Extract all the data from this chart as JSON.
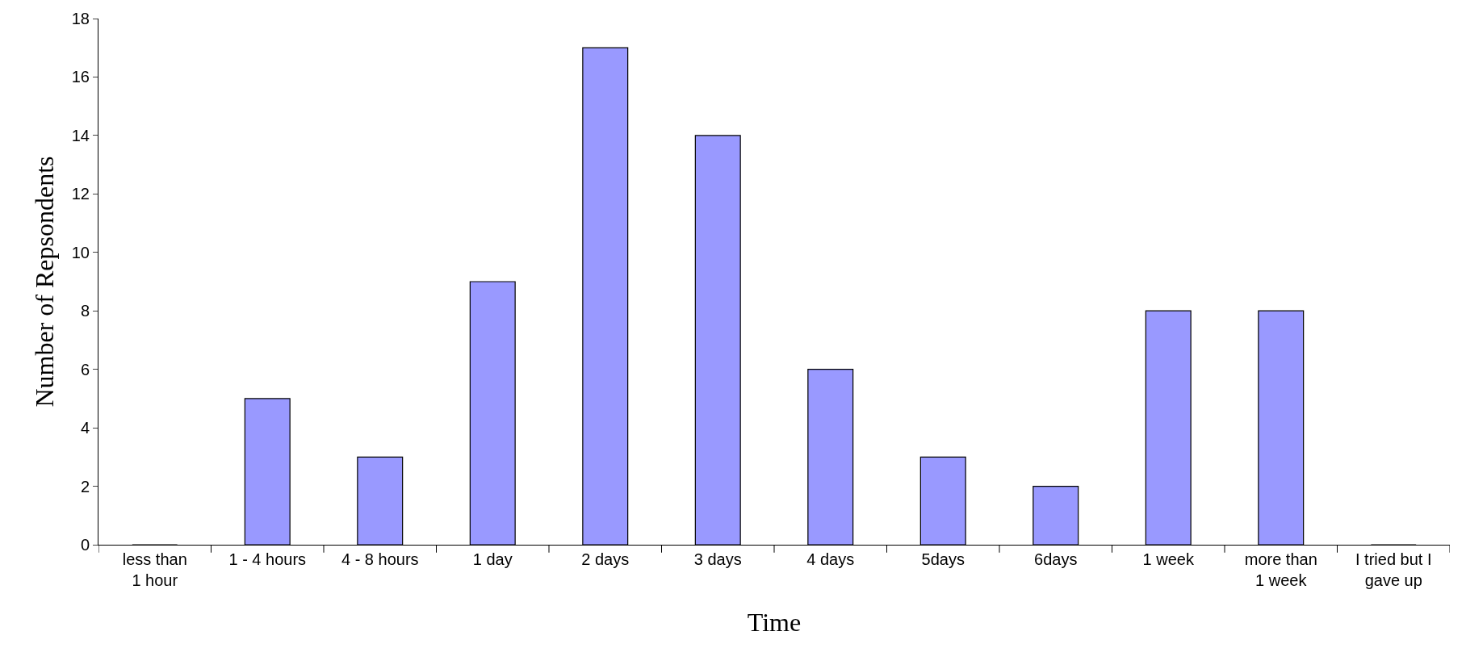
{
  "chart_data": {
    "type": "bar",
    "xlabel": "Time",
    "ylabel": "Number of Repsondents",
    "categories": [
      "less than\n1 hour",
      "1 - 4 hours",
      "4 - 8 hours",
      "1 day",
      "2 days",
      "3 days",
      "4 days",
      "5days",
      "6days",
      "1 week",
      "more than\n1 week",
      "I tried but I\ngave up"
    ],
    "values": [
      0,
      5,
      3,
      9,
      17,
      14,
      6,
      3,
      2,
      8,
      8,
      0
    ],
    "color": "#9999ff",
    "ylim": [
      0,
      18
    ],
    "yticks": [
      0,
      2,
      4,
      6,
      8,
      10,
      12,
      14,
      16,
      18
    ]
  }
}
